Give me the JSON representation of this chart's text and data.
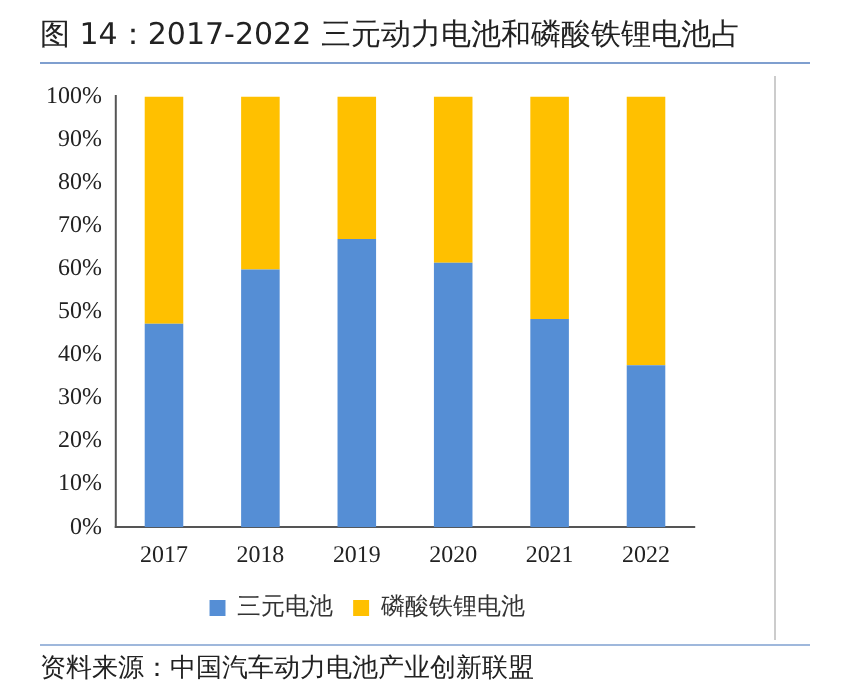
{
  "chart_data": {
    "type": "bar",
    "title": "图 14：2017-2022 三元动力电池和磷酸铁锂电池占",
    "stacked": true,
    "categories": [
      "2017",
      "2018",
      "2019",
      "2020",
      "2021",
      "2022"
    ],
    "series": [
      {
        "name": "三元电池",
        "color": "#558ed5",
        "values": [
          47.2,
          59.8,
          66.9,
          61.4,
          48.3,
          37.6
        ]
      },
      {
        "name": "磷酸铁锂电池",
        "color": "#ffc000",
        "values": [
          52.8,
          40.2,
          33.1,
          38.6,
          51.7,
          62.4
        ]
      }
    ],
    "ylim": [
      0,
      100
    ],
    "yticks": [
      {
        "value": 0,
        "label": "0%"
      },
      {
        "value": 10,
        "label": "10%"
      },
      {
        "value": 20,
        "label": "20%"
      },
      {
        "value": 30,
        "label": "30%"
      },
      {
        "value": 40,
        "label": "40%"
      },
      {
        "value": 50,
        "label": "50%"
      },
      {
        "value": 60,
        "label": "60%"
      },
      {
        "value": 70,
        "label": "70%"
      },
      {
        "value": 80,
        "label": "80%"
      },
      {
        "value": 90,
        "label": "90%"
      },
      {
        "value": 100,
        "label": "100%"
      }
    ],
    "grid": false,
    "legend": "bottom",
    "annotations": [
      "资料来源：中国汽车动力电池产业创新联盟"
    ]
  }
}
